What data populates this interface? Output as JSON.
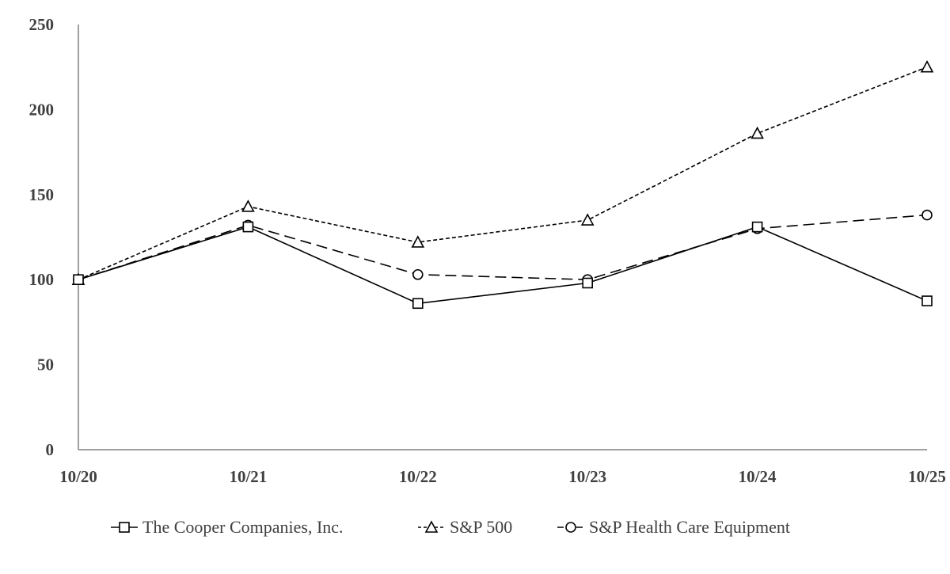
{
  "chart_data": {
    "type": "line",
    "title": "",
    "xlabel": "",
    "ylabel": "",
    "categories": [
      "10/20",
      "10/21",
      "10/22",
      "10/23",
      "10/24",
      "10/25"
    ],
    "ylim": [
      0,
      250
    ],
    "yticks": [
      0,
      50,
      100,
      150,
      200,
      250
    ],
    "grid": false,
    "legend_position": "bottom",
    "series": [
      {
        "name": "The Cooper Companies, Inc.",
        "values": [
          100,
          131,
          86,
          98,
          131,
          87.5
        ],
        "line_style": "solid",
        "marker": "square",
        "color": "#000000"
      },
      {
        "name": "S&P 500",
        "values": [
          100,
          143,
          122,
          135,
          186,
          225
        ],
        "line_style": "dotted",
        "marker": "triangle",
        "color": "#000000"
      },
      {
        "name": "S&P Health Care Equipment",
        "values": [
          100,
          132,
          103,
          100,
          130,
          138
        ],
        "line_style": "dashed",
        "marker": "circle",
        "color": "#000000"
      }
    ]
  },
  "colors": {
    "axis": "#808080",
    "text": "#404040",
    "series": "#000000"
  }
}
